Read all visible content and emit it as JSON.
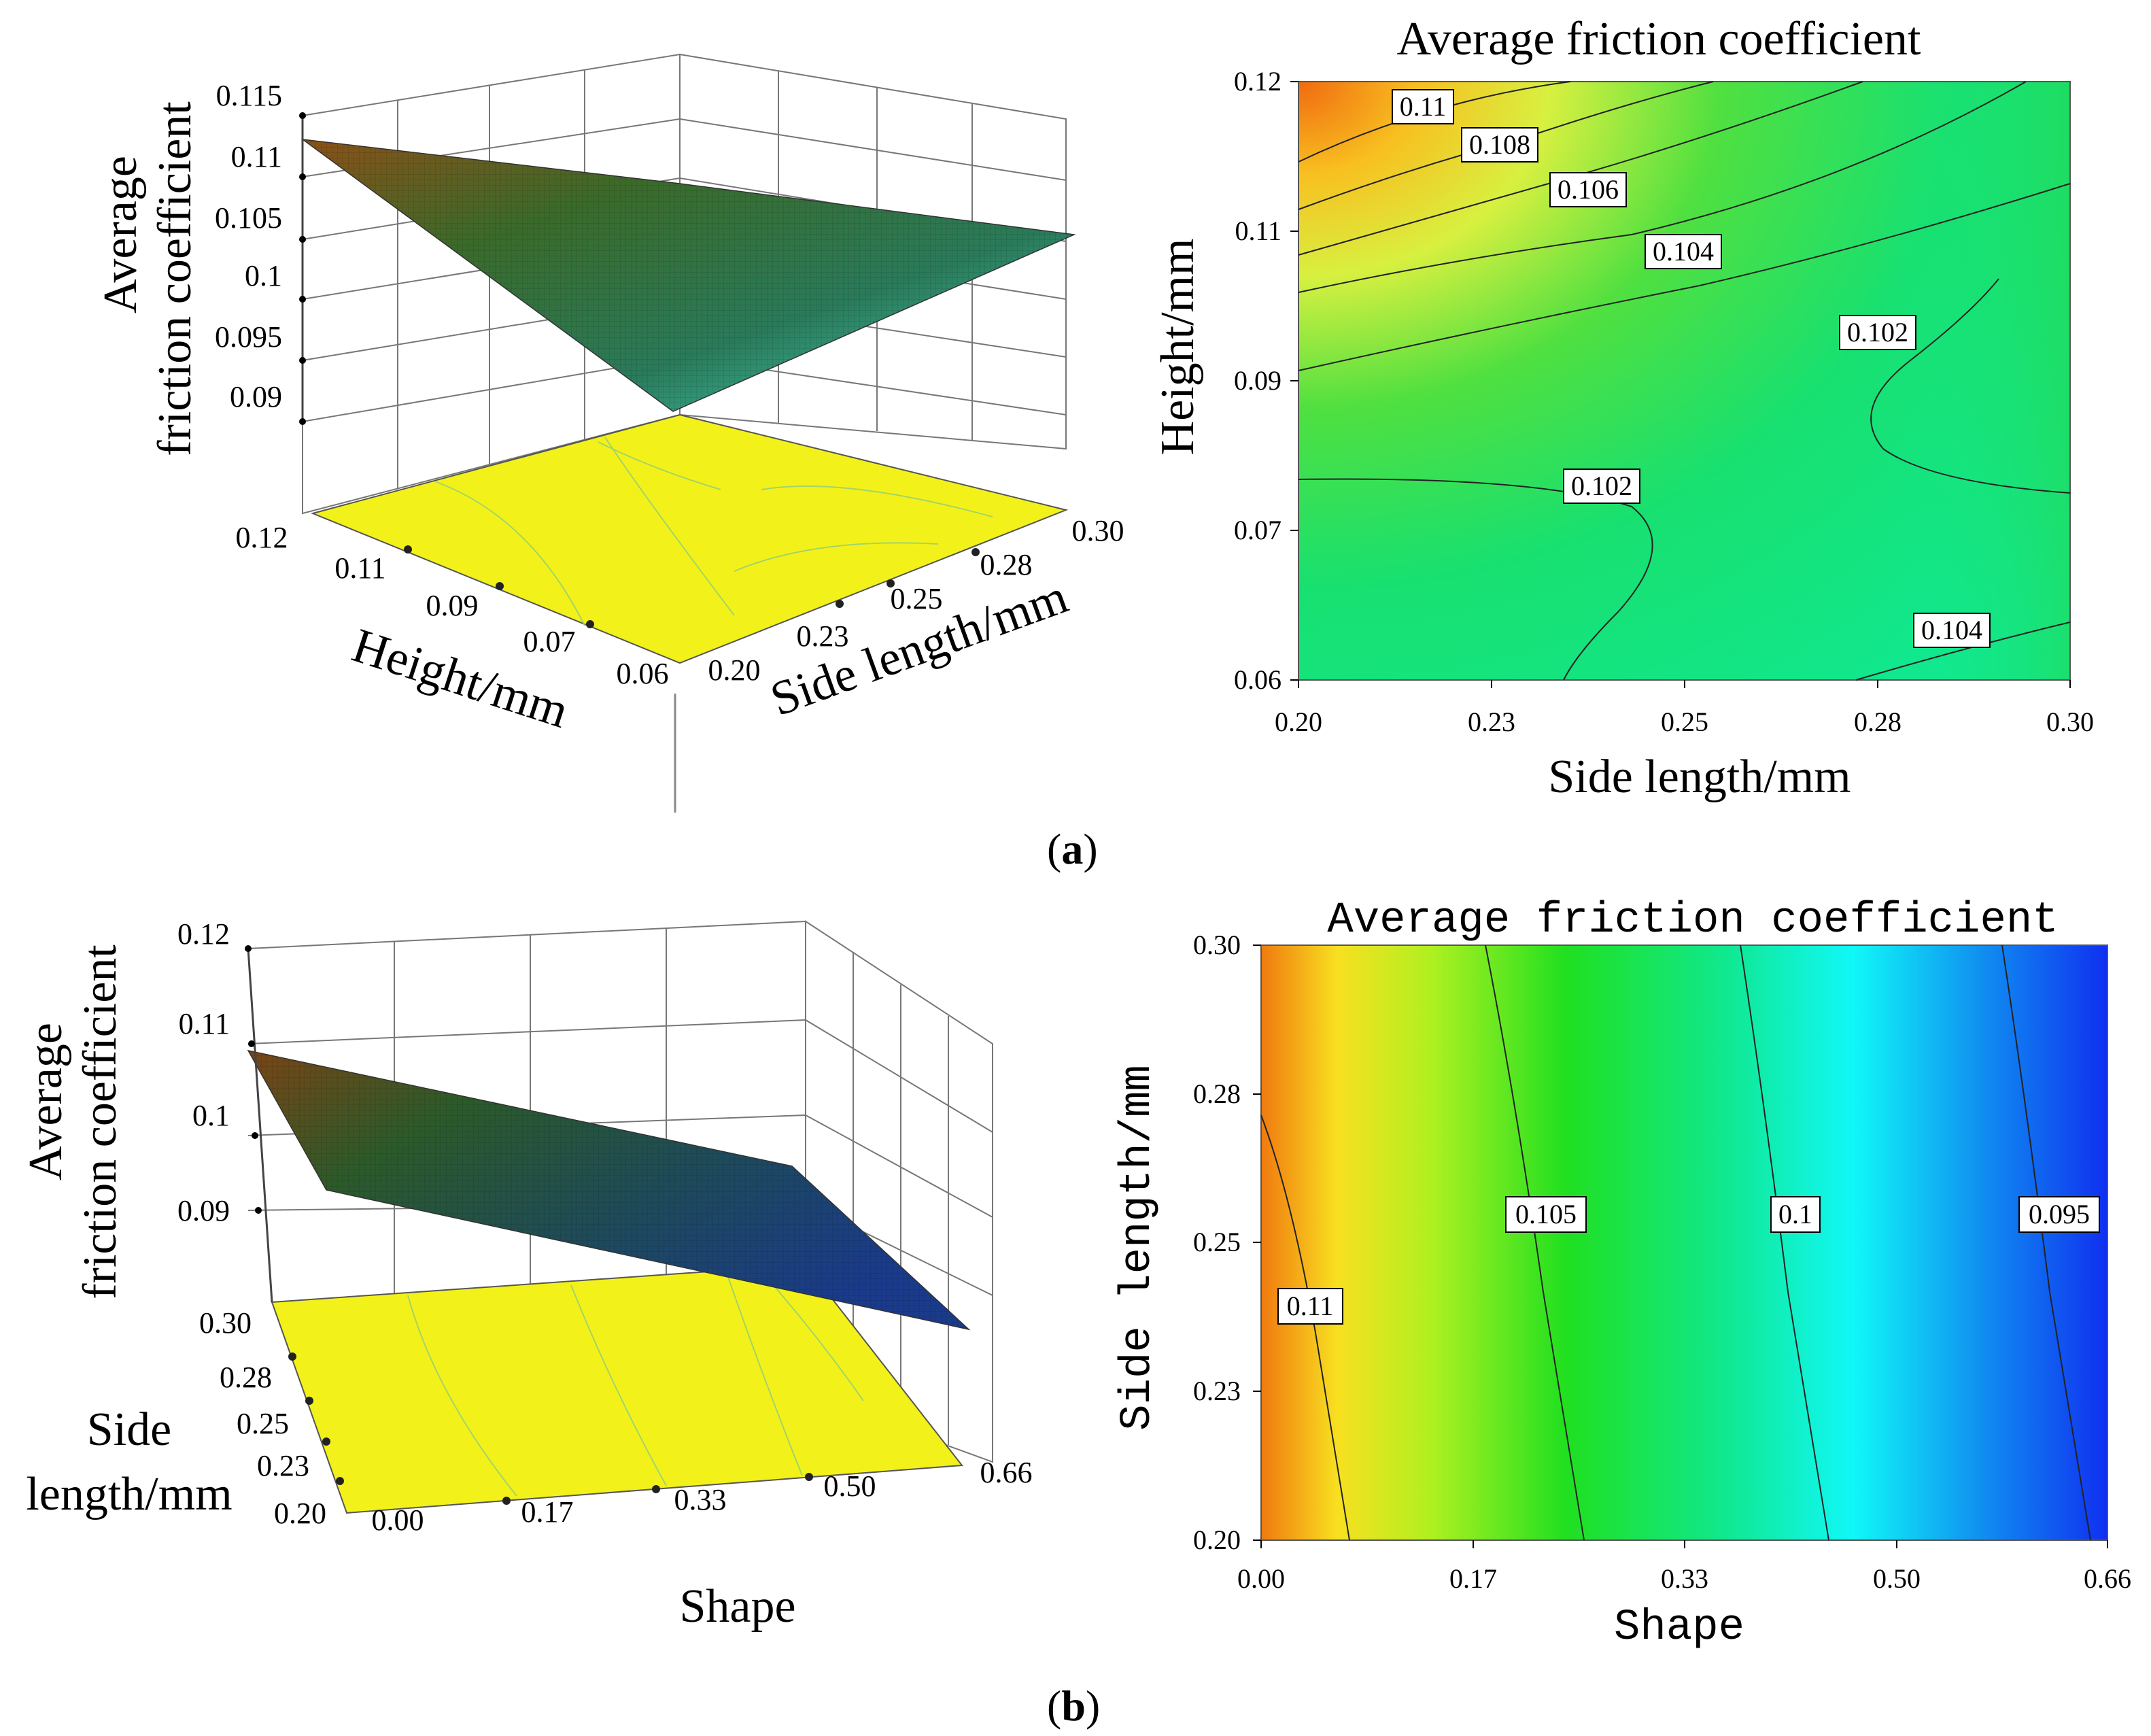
{
  "figure": {
    "panel_a_label": "a",
    "panel_b_label": "b"
  },
  "chart_data": [
    {
      "id": "a-surface",
      "type": "surface3d",
      "zlabel_line1": "Average",
      "zlabel_line2": "friction coefficient",
      "xlabel": "Height/mm",
      "ylabel": "Side length/mm",
      "z_ticks": [
        "0.09",
        "0.095",
        "0.1",
        "0.105",
        "0.11",
        "0.115"
      ],
      "x_ticks": [
        "0.12",
        "0.11",
        "0.09",
        "0.07",
        "0.06"
      ],
      "y_ticks": [
        "0.20",
        "0.23",
        "0.25",
        "0.28",
        "0.30"
      ],
      "zlim": [
        0.09,
        0.115
      ],
      "colors": {
        "floor": "#f2f21a",
        "surface_high": "#8a5a1a",
        "surface_mid": "#2a6a3a",
        "surface_low": "#3fd6c0"
      }
    },
    {
      "id": "a-contour",
      "type": "contour",
      "title": "Average friction coefficient",
      "xlabel": "Side length/mm",
      "ylabel": "Height/mm",
      "x_ticks": [
        "0.20",
        "0.23",
        "0.25",
        "0.28",
        "0.30"
      ],
      "y_ticks": [
        "0.06",
        "0.07",
        "0.09",
        "0.11",
        "0.12"
      ],
      "xlim": [
        0.2,
        0.3
      ],
      "ylim": [
        0.06,
        0.12
      ],
      "contour_labels": [
        "0.11",
        "0.108",
        "0.106",
        "0.104",
        "0.102",
        "0.102",
        "0.104"
      ],
      "colors": {
        "high": "#f07010",
        "mid": "#c8f030",
        "low": "#10e890"
      }
    },
    {
      "id": "b-surface",
      "type": "surface3d",
      "zlabel_line1": "Average",
      "zlabel_line2": "friction coefficient",
      "xlabel_line1": "Side",
      "xlabel_line2": "length/mm",
      "ylabel": "Shape",
      "z_ticks": [
        "0.09",
        "0.1",
        "0.11",
        "0.12"
      ],
      "x_ticks": [
        "0.30",
        "0.28",
        "0.25",
        "0.23",
        "0.20"
      ],
      "y_ticks": [
        "0.00",
        "0.17",
        "0.33",
        "0.50",
        "0.66"
      ],
      "zlim": [
        0.09,
        0.12
      ],
      "colors": {
        "floor": "#f2f21a",
        "surface_high": "#8a4a1a",
        "surface_low": "#1a3a8a"
      }
    },
    {
      "id": "b-contour",
      "type": "contour",
      "title": "Average friction coefficient",
      "xlabel": "Shape",
      "ylabel": "Side length/mm",
      "x_ticks": [
        "0.00",
        "0.17",
        "0.33",
        "0.50",
        "0.66"
      ],
      "y_ticks": [
        "0.20",
        "0.23",
        "0.25",
        "0.28",
        "0.30"
      ],
      "xlim": [
        0.0,
        0.66
      ],
      "ylim": [
        0.2,
        0.3
      ],
      "contour_labels": [
        "0.11",
        "0.105",
        "0.1",
        "0.095"
      ],
      "colors": {
        "c0": "#f08010",
        "c1": "#f0f020",
        "c2": "#20e020",
        "c3": "#10f0f0",
        "c4": "#1040f0"
      }
    }
  ]
}
